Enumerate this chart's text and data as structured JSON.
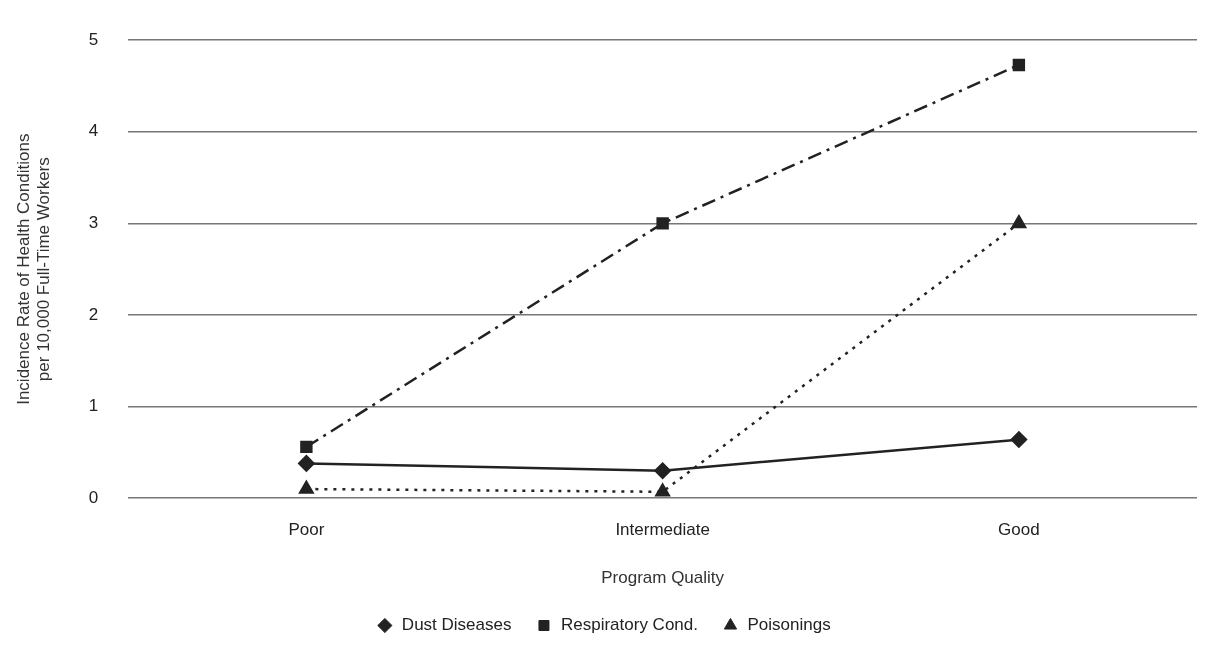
{
  "chart_data": {
    "type": "line",
    "xlabel": "Program Quality",
    "ylabel": "Incidence Rate of Health Conditions per 10,000 Full-Time Workers",
    "categories": [
      "Poor",
      "Intermediate",
      "Good"
    ],
    "series": [
      {
        "name": "Dust Diseases",
        "color": "#222222",
        "values": [
          0.38,
          0.3,
          0.64
        ],
        "marker": "diamond",
        "line_style": "solid"
      },
      {
        "name": "Respiratory Cond.",
        "color": "#222222",
        "values": [
          0.56,
          3.0,
          4.73
        ],
        "marker": "square",
        "line_style": "dashed"
      },
      {
        "name": "Poisonings",
        "color": "#222222",
        "values": [
          0.1,
          0.07,
          3.0
        ],
        "marker": "triangle",
        "line_style": "dotted"
      }
    ],
    "ylim": [
      0,
      5
    ],
    "yticks": [
      0,
      1,
      2,
      3,
      4,
      5
    ],
    "grid": "y",
    "legend": "bottom"
  }
}
